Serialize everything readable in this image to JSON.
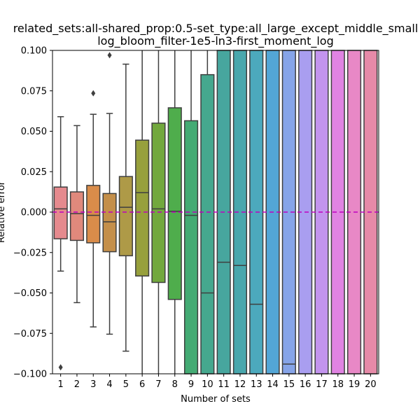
{
  "chart_data": {
    "type": "box",
    "title": [
      "related_sets:all-shared_prop:0.5-set_type:all_large_except_middle_small",
      "log_bloom_filter-1e5-ln3-first_moment_log"
    ],
    "xlabel": "Number of sets",
    "ylabel": "Relative error",
    "ylim": [
      -0.1,
      0.1
    ],
    "yticks": [
      "0.100",
      "0.075",
      "0.050",
      "0.025",
      "0.000",
      "−0.025",
      "−0.050",
      "−0.075",
      "−0.100"
    ],
    "ytick_values": [
      0.1,
      0.075,
      0.05,
      0.025,
      0.0,
      -0.025,
      -0.05,
      -0.075,
      -0.1
    ],
    "categories": [
      "1",
      "2",
      "3",
      "4",
      "5",
      "6",
      "7",
      "8",
      "9",
      "10",
      "11",
      "12",
      "13",
      "14",
      "15",
      "16",
      "17",
      "18",
      "19",
      "20"
    ],
    "reference_line": {
      "y": 0.0,
      "color": "#bf00bf",
      "style": "dashed"
    },
    "boxes": [
      {
        "q1": -0.0165,
        "median": 0.002,
        "q3": 0.0155,
        "wlow": -0.0365,
        "whigh": 0.059,
        "outliers": [
          -0.096
        ],
        "color": "#e58a8e"
      },
      {
        "q1": -0.0175,
        "median": -0.001,
        "q3": 0.0125,
        "wlow": -0.056,
        "whigh": 0.0535,
        "outliers": [],
        "color": "#e0897c"
      },
      {
        "q1": -0.019,
        "median": -0.002,
        "q3": 0.0165,
        "wlow": -0.071,
        "whigh": 0.0605,
        "outliers": [
          0.0735
        ],
        "color": "#d98c4a"
      },
      {
        "q1": -0.0245,
        "median": -0.006,
        "q3": 0.0115,
        "wlow": -0.0755,
        "whigh": 0.061,
        "outliers": [
          0.097
        ],
        "color": "#c48f4a"
      },
      {
        "q1": -0.027,
        "median": 0.003,
        "q3": 0.022,
        "wlow": -0.086,
        "whigh": 0.0915,
        "outliers": [],
        "color": "#ae9a47"
      },
      {
        "q1": -0.0395,
        "median": 0.012,
        "q3": 0.0445,
        "wlow": -0.1,
        "whigh": 0.1,
        "outliers": [],
        "color": "#97a03c"
      },
      {
        "q1": -0.0435,
        "median": 0.002,
        "q3": 0.055,
        "wlow": -0.1,
        "whigh": 0.1,
        "outliers": [],
        "color": "#72a83d"
      },
      {
        "q1": -0.054,
        "median": 0.0005,
        "q3": 0.0645,
        "wlow": -0.1,
        "whigh": 0.1,
        "outliers": [],
        "color": "#4fad4c"
      },
      {
        "q1": -0.1,
        "median": -0.002,
        "q3": 0.0565,
        "wlow": -0.1,
        "whigh": 0.1,
        "outliers": [],
        "color": "#44ab74"
      },
      {
        "q1": -0.1,
        "median": -0.05,
        "q3": 0.085,
        "wlow": -0.1,
        "whigh": 0.1,
        "outliers": [],
        "color": "#45a88e"
      },
      {
        "q1": -0.1,
        "median": -0.031,
        "q3": 0.1,
        "wlow": -0.1,
        "whigh": 0.1,
        "outliers": [],
        "color": "#47a69e"
      },
      {
        "q1": -0.1,
        "median": -0.033,
        "q3": 0.1,
        "wlow": -0.1,
        "whigh": 0.1,
        "outliers": [],
        "color": "#49a7ad"
      },
      {
        "q1": -0.1,
        "median": -0.057,
        "q3": 0.1,
        "wlow": -0.1,
        "whigh": 0.1,
        "outliers": [],
        "color": "#4ca9bd"
      },
      {
        "q1": -0.1,
        "median": null,
        "q3": 0.1,
        "wlow": -0.1,
        "whigh": 0.1,
        "outliers": [],
        "color": "#53a6d6"
      },
      {
        "q1": -0.1,
        "median": -0.094,
        "q3": 0.1,
        "wlow": -0.1,
        "whigh": 0.1,
        "outliers": [],
        "color": "#86a4e8"
      },
      {
        "q1": -0.1,
        "median": null,
        "q3": 0.1,
        "wlow": -0.1,
        "whigh": 0.1,
        "outliers": [],
        "color": "#a99ef0"
      },
      {
        "q1": -0.1,
        "median": null,
        "q3": 0.1,
        "wlow": -0.1,
        "whigh": 0.1,
        "outliers": [],
        "color": "#c394ee"
      },
      {
        "q1": -0.1,
        "median": null,
        "q3": 0.1,
        "wlow": -0.1,
        "whigh": 0.1,
        "outliers": [],
        "color": "#e083e2"
      },
      {
        "q1": -0.1,
        "median": null,
        "q3": 0.1,
        "wlow": -0.1,
        "whigh": 0.1,
        "outliers": [],
        "color": "#e888c6"
      },
      {
        "q1": -0.1,
        "median": null,
        "q3": 0.1,
        "wlow": -0.1,
        "whigh": 0.1,
        "outliers": [],
        "color": "#e68aa8"
      }
    ]
  }
}
